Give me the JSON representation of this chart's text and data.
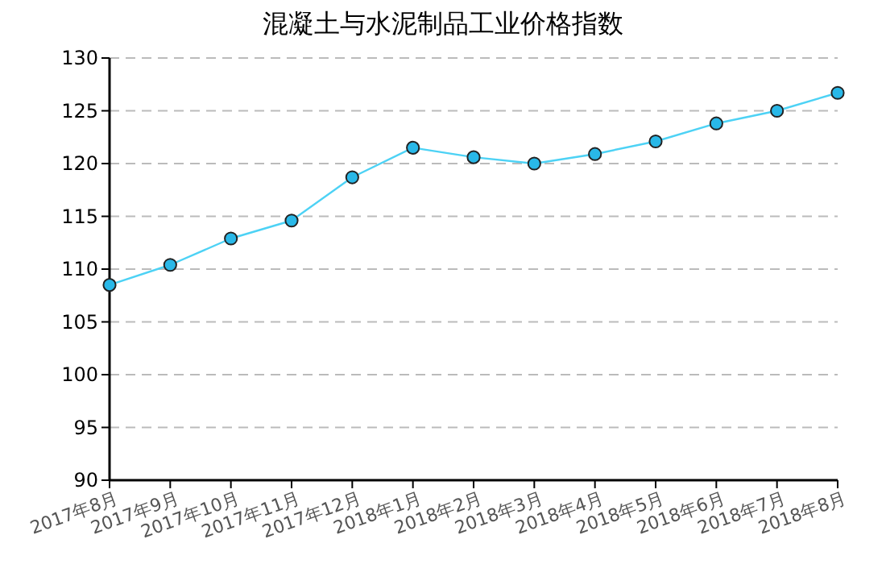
{
  "chart_data": {
    "type": "line",
    "title": "混凝土与水泥制品工业价格指数",
    "categories": [
      "2017年8月",
      "2017年9月",
      "2017年10月",
      "2017年11月",
      "2017年12月",
      "2018年1月",
      "2018年2月",
      "2018年3月",
      "2018年4月",
      "2018年5月",
      "2018年6月",
      "2018年7月",
      "2018年8月"
    ],
    "series": [
      {
        "color": "#4dd2f5",
        "values": [
          108.5,
          110.4,
          112.9,
          114.6,
          118.7,
          121.5,
          120.6,
          120.0,
          120.9,
          122.1,
          123.8,
          125.0,
          126.7
        ]
      }
    ],
    "ylim": [
      90,
      130
    ],
    "yticks": [
      90,
      95,
      100,
      105,
      110,
      115,
      120,
      125,
      130
    ],
    "grid": "y",
    "marker": "circle",
    "line_style": "solid"
  }
}
